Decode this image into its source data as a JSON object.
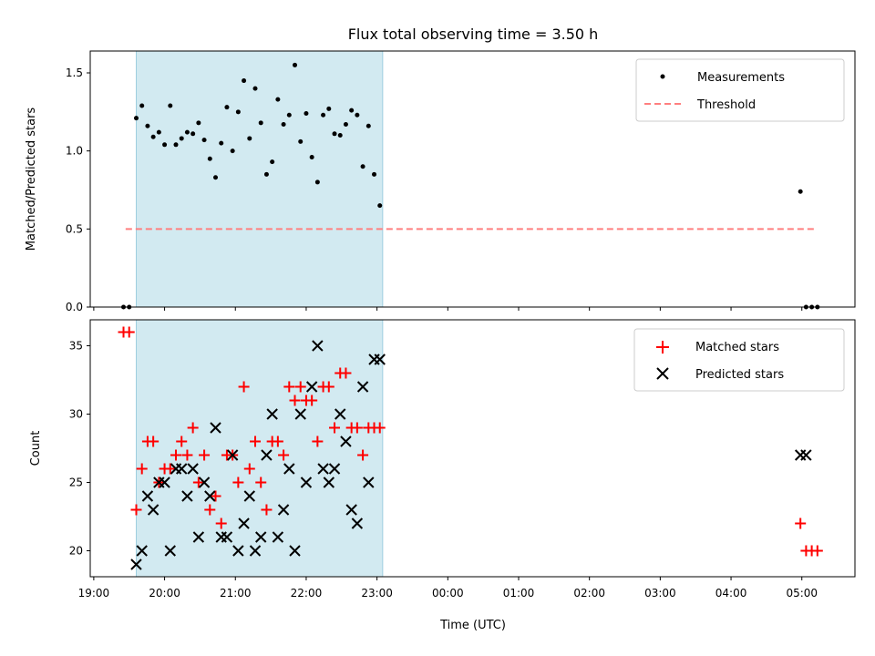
{
  "title": "Flux total observing time = 3.50 h",
  "colors": {
    "highlight": "#add8e6",
    "measurement": "#000000",
    "threshold": "#ff7f7f",
    "matched": "#ff0000",
    "predicted": "#000000"
  },
  "highlight_window": {
    "start": 19.6,
    "end": 23.08
  },
  "x_axis": {
    "label": "Time (UTC)",
    "range": [
      18.95,
      29.75
    ],
    "ticks": [
      19,
      20,
      21,
      22,
      23,
      24,
      25,
      26,
      27,
      28,
      29
    ],
    "tick_labels": [
      "19:00",
      "20:00",
      "21:00",
      "22:00",
      "23:00",
      "00:00",
      "01:00",
      "02:00",
      "03:00",
      "04:00",
      "05:00"
    ]
  },
  "chart_data": [
    {
      "type": "scatter",
      "panel": "top",
      "ylabel": "Matched/Predicted stars",
      "ylim": [
        0,
        1.64
      ],
      "yticks": [
        0.0,
        0.5,
        1.0,
        1.5
      ],
      "ytick_labels": [
        "0.0",
        "0.5",
        "1.0",
        "1.5"
      ],
      "legend": {
        "placement": "top-right",
        "entries": [
          "Measurements",
          "Threshold"
        ]
      },
      "threshold": {
        "name": "Threshold",
        "value": 0.5,
        "x_start": 19.45,
        "x_end": 29.2
      },
      "series": [
        {
          "name": "Measurements",
          "x": [
            19.42,
            19.5,
            19.6,
            19.68,
            19.76,
            19.84,
            19.92,
            20.0,
            20.08,
            20.16,
            20.24,
            20.32,
            20.4,
            20.48,
            20.56,
            20.64,
            20.72,
            20.8,
            20.88,
            20.96,
            21.04,
            21.12,
            21.2,
            21.28,
            21.36,
            21.44,
            21.52,
            21.6,
            21.68,
            21.76,
            21.84,
            21.92,
            22.0,
            22.08,
            22.16,
            22.24,
            22.32,
            22.4,
            22.48,
            22.56,
            22.64,
            22.72,
            22.8,
            22.88,
            22.96,
            23.04,
            28.98,
            29.06,
            29.14,
            29.22
          ],
          "y": [
            0.0,
            0.0,
            1.21,
            1.29,
            1.16,
            1.09,
            1.12,
            1.04,
            1.29,
            1.04,
            1.08,
            1.12,
            1.11,
            1.18,
            1.07,
            0.95,
            0.83,
            1.05,
            1.28,
            1.0,
            1.25,
            1.45,
            1.08,
            1.4,
            1.18,
            0.85,
            0.93,
            1.33,
            1.17,
            1.23,
            1.55,
            1.06,
            1.24,
            0.96,
            0.8,
            1.23,
            1.27,
            1.11,
            1.1,
            1.17,
            1.26,
            1.23,
            0.9,
            1.16,
            0.85,
            0.65,
            0.74,
            0.0,
            0.0,
            0.0
          ]
        }
      ]
    },
    {
      "type": "scatter",
      "panel": "bottom",
      "ylabel": "Count",
      "ylim": [
        18.1,
        36.9
      ],
      "yticks": [
        20,
        25,
        30,
        35
      ],
      "ytick_labels": [
        "20",
        "25",
        "30",
        "35"
      ],
      "legend": {
        "placement": "top-right",
        "entries": [
          "Matched stars",
          "Predicted stars"
        ]
      },
      "series": [
        {
          "name": "Matched stars",
          "marker": "plus",
          "x": [
            19.42,
            19.5,
            19.6,
            19.68,
            19.76,
            19.84,
            19.92,
            20.0,
            20.08,
            20.16,
            20.24,
            20.32,
            20.4,
            20.48,
            20.56,
            20.64,
            20.72,
            20.8,
            20.88,
            20.96,
            21.04,
            21.12,
            21.2,
            21.28,
            21.36,
            21.44,
            21.52,
            21.6,
            21.68,
            21.76,
            21.84,
            21.92,
            22.0,
            22.08,
            22.16,
            22.24,
            22.32,
            22.4,
            22.48,
            22.56,
            22.64,
            22.72,
            22.8,
            22.88,
            22.96,
            23.04,
            28.98,
            29.06,
            29.14,
            29.22
          ],
          "y": [
            36,
            36,
            23,
            26,
            28,
            28,
            25,
            26,
            26,
            27,
            28,
            27,
            29,
            25,
            27,
            23,
            24,
            22,
            27,
            27,
            25,
            32,
            26,
            28,
            25,
            23,
            28,
            28,
            27,
            32,
            31,
            32,
            31,
            31,
            28,
            32,
            32,
            29,
            33,
            33,
            29,
            29,
            27,
            29,
            29,
            29,
            22,
            20,
            20,
            20
          ]
        },
        {
          "name": "Predicted stars",
          "marker": "x",
          "x": [
            19.6,
            19.68,
            19.76,
            19.84,
            19.92,
            20.0,
            20.08,
            20.16,
            20.24,
            20.32,
            20.4,
            20.48,
            20.56,
            20.64,
            20.72,
            20.8,
            20.88,
            20.96,
            21.04,
            21.12,
            21.2,
            21.28,
            21.36,
            21.44,
            21.52,
            21.6,
            21.68,
            21.76,
            21.84,
            21.92,
            22.0,
            22.08,
            22.16,
            22.24,
            22.32,
            22.4,
            22.48,
            22.56,
            22.64,
            22.72,
            22.8,
            22.88,
            22.96,
            23.04,
            28.98,
            29.06
          ],
          "y": [
            19,
            20,
            24,
            23,
            25,
            25,
            20,
            26,
            26,
            24,
            26,
            21,
            25,
            24,
            29,
            21,
            21,
            27,
            20,
            22,
            24,
            20,
            21,
            27,
            30,
            21,
            23,
            26,
            20,
            30,
            25,
            32,
            35,
            26,
            25,
            26,
            30,
            28,
            23,
            22,
            32,
            25,
            34,
            34,
            27,
            27
          ]
        }
      ]
    }
  ]
}
